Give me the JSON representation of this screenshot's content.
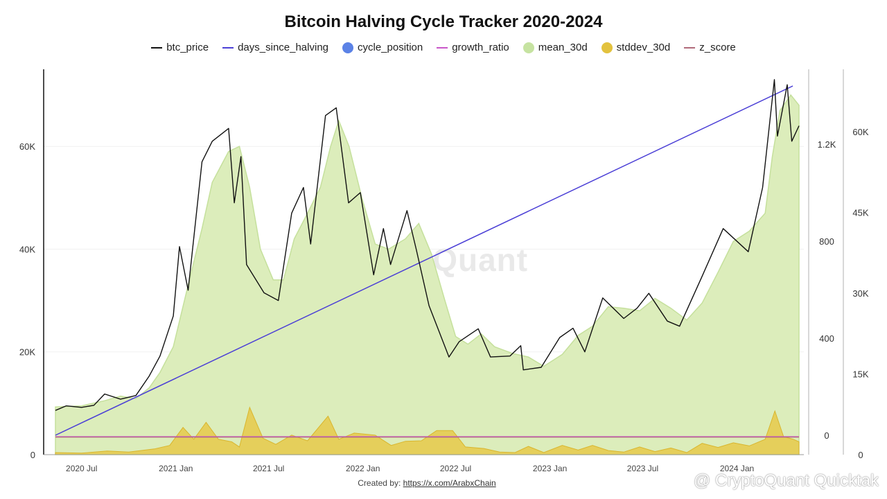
{
  "title": "Bitcoin Halving Cycle Tracker 2020-2024",
  "legend": [
    {
      "label": "btc_price",
      "color": "#111111",
      "kind": "line"
    },
    {
      "label": "days_since_halving",
      "color": "#4b3fd6",
      "kind": "line"
    },
    {
      "label": "cycle_position",
      "color": "#5b82e6",
      "kind": "dot"
    },
    {
      "label": "growth_ratio",
      "color": "#c956c9",
      "kind": "line"
    },
    {
      "label": "mean_30d",
      "color": "#c6e3a1",
      "kind": "dot"
    },
    {
      "label": "stddev_30d",
      "color": "#e3c23e",
      "kind": "dot"
    },
    {
      "label": "z_score",
      "color": "#b06a7a",
      "kind": "line"
    }
  ],
  "watermark": "CryptoQuant",
  "credit": {
    "prefix": "Created by:",
    "link": "https://x.com/ArabxChain"
  },
  "brand": "@ CryptoQuant Quicktak",
  "chart_data": {
    "type": "line",
    "x_ticks": [
      "2020 Jul",
      "2021 Jan",
      "2021 Jul",
      "2022 Jan",
      "2022 Jul",
      "2023 Jan",
      "2023 Jul",
      "2024 Jan"
    ],
    "x_start": "2020-05-11",
    "x_end": "2024-05-01",
    "y_left": {
      "ticks": [
        "0",
        "20K",
        "40K",
        "60K"
      ],
      "range": [
        0,
        75000
      ]
    },
    "y_right_inner": {
      "ticks": [
        "0",
        "400",
        "800",
        "1.2K"
      ],
      "range": [
        -100,
        1500
      ]
    },
    "y_right_outer": {
      "ticks": [
        "0",
        "15K",
        "30K",
        "45K",
        "60K"
      ],
      "range": [
        0,
        72000
      ]
    },
    "series": [
      {
        "name": "btc_price",
        "axis": "left",
        "points": [
          [
            "2020-05-11",
            8600
          ],
          [
            "2020-06-01",
            9500
          ],
          [
            "2020-07-01",
            9200
          ],
          [
            "2020-07-25",
            9600
          ],
          [
            "2020-08-15",
            11800
          ],
          [
            "2020-09-15",
            10800
          ],
          [
            "2020-10-15",
            11500
          ],
          [
            "2020-11-10",
            15300
          ],
          [
            "2020-12-01",
            19200
          ],
          [
            "2020-12-27",
            27000
          ],
          [
            "2021-01-08",
            40500
          ],
          [
            "2021-01-25",
            32000
          ],
          [
            "2021-02-21",
            57000
          ],
          [
            "2021-03-13",
            61000
          ],
          [
            "2021-04-14",
            63500
          ],
          [
            "2021-04-25",
            49000
          ],
          [
            "2021-05-08",
            58000
          ],
          [
            "2021-05-19",
            37000
          ],
          [
            "2021-06-22",
            31500
          ],
          [
            "2021-07-20",
            30000
          ],
          [
            "2021-08-15",
            47000
          ],
          [
            "2021-09-07",
            52000
          ],
          [
            "2021-09-21",
            41000
          ],
          [
            "2021-10-20",
            66000
          ],
          [
            "2021-11-10",
            67500
          ],
          [
            "2021-12-04",
            49000
          ],
          [
            "2021-12-27",
            51000
          ],
          [
            "2022-01-22",
            35000
          ],
          [
            "2022-02-10",
            44000
          ],
          [
            "2022-02-24",
            37000
          ],
          [
            "2022-03-28",
            47500
          ],
          [
            "2022-04-15",
            40000
          ],
          [
            "2022-05-10",
            29000
          ],
          [
            "2022-06-18",
            19000
          ],
          [
            "2022-07-08",
            22000
          ],
          [
            "2022-08-14",
            24500
          ],
          [
            "2022-09-07",
            19000
          ],
          [
            "2022-10-15",
            19200
          ],
          [
            "2022-11-05",
            21200
          ],
          [
            "2022-11-10",
            16500
          ],
          [
            "2022-12-15",
            17000
          ],
          [
            "2023-01-20",
            22800
          ],
          [
            "2023-02-15",
            24600
          ],
          [
            "2023-03-10",
            20000
          ],
          [
            "2023-04-14",
            30500
          ],
          [
            "2023-05-25",
            26500
          ],
          [
            "2023-06-20",
            28500
          ],
          [
            "2023-07-13",
            31400
          ],
          [
            "2023-08-18",
            26000
          ],
          [
            "2023-09-11",
            25000
          ],
          [
            "2023-10-24",
            34500
          ],
          [
            "2023-12-05",
            44000
          ],
          [
            "2024-01-23",
            39500
          ],
          [
            "2024-02-20",
            52000
          ],
          [
            "2024-03-14",
            73000
          ],
          [
            "2024-03-20",
            62000
          ],
          [
            "2024-04-08",
            72000
          ],
          [
            "2024-04-17",
            61000
          ],
          [
            "2024-05-01",
            64000
          ]
        ]
      },
      {
        "name": "mean_30d",
        "axis": "left",
        "points": [
          [
            "2020-05-11",
            9300
          ],
          [
            "2020-07-01",
            9500
          ],
          [
            "2020-08-15",
            10500
          ],
          [
            "2020-09-15",
            11400
          ],
          [
            "2020-10-15",
            10900
          ],
          [
            "2020-11-10",
            13000
          ],
          [
            "2020-12-01",
            16000
          ],
          [
            "2020-12-27",
            21000
          ],
          [
            "2021-01-25",
            33000
          ],
          [
            "2021-02-21",
            44000
          ],
          [
            "2021-03-13",
            53000
          ],
          [
            "2021-04-14",
            59000
          ],
          [
            "2021-05-05",
            60000
          ],
          [
            "2021-05-25",
            52000
          ],
          [
            "2021-06-15",
            40000
          ],
          [
            "2021-07-10",
            34000
          ],
          [
            "2021-07-30",
            34000
          ],
          [
            "2021-08-20",
            42000
          ],
          [
            "2021-09-15",
            47000
          ],
          [
            "2021-10-10",
            52000
          ],
          [
            "2021-10-30",
            60000
          ],
          [
            "2021-11-15",
            65000
          ],
          [
            "2021-12-05",
            60000
          ],
          [
            "2021-12-30",
            50000
          ],
          [
            "2022-01-25",
            41000
          ],
          [
            "2022-02-20",
            40000
          ],
          [
            "2022-03-25",
            42000
          ],
          [
            "2022-04-20",
            45000
          ],
          [
            "2022-05-15",
            39000
          ],
          [
            "2022-06-10",
            30000
          ],
          [
            "2022-07-01",
            23000
          ],
          [
            "2022-07-25",
            21500
          ],
          [
            "2022-08-20",
            23500
          ],
          [
            "2022-09-15",
            21000
          ],
          [
            "2022-10-20",
            19700
          ],
          [
            "2022-11-20",
            19000
          ],
          [
            "2022-12-20",
            17200
          ],
          [
            "2023-01-25",
            19500
          ],
          [
            "2023-02-25",
            23200
          ],
          [
            "2023-03-25",
            25000
          ],
          [
            "2023-04-25",
            28800
          ],
          [
            "2023-05-25",
            28500
          ],
          [
            "2023-06-25",
            28000
          ],
          [
            "2023-07-25",
            30400
          ],
          [
            "2023-08-25",
            28500
          ],
          [
            "2023-09-25",
            26200
          ],
          [
            "2023-10-25",
            29500
          ],
          [
            "2023-11-25",
            35500
          ],
          [
            "2023-12-25",
            41500
          ],
          [
            "2024-01-25",
            43500
          ],
          [
            "2024-02-25",
            47000
          ],
          [
            "2024-03-10",
            58000
          ],
          [
            "2024-03-25",
            67000
          ],
          [
            "2024-04-15",
            70000
          ],
          [
            "2024-05-01",
            68000
          ]
        ]
      },
      {
        "name": "stddev_30d",
        "axis": "left",
        "points": [
          [
            "2020-05-11",
            400
          ],
          [
            "2020-07-01",
            300
          ],
          [
            "2020-08-20",
            700
          ],
          [
            "2020-10-01",
            500
          ],
          [
            "2020-11-20",
            1100
          ],
          [
            "2020-12-20",
            1800
          ],
          [
            "2021-01-15",
            5300
          ],
          [
            "2021-02-05",
            3000
          ],
          [
            "2021-03-01",
            6300
          ],
          [
            "2021-03-25",
            3000
          ],
          [
            "2021-04-20",
            2500
          ],
          [
            "2021-05-05",
            1500
          ],
          [
            "2021-05-25",
            9200
          ],
          [
            "2021-06-20",
            3200
          ],
          [
            "2021-07-15",
            2000
          ],
          [
            "2021-08-15",
            3800
          ],
          [
            "2021-09-15",
            2700
          ],
          [
            "2021-10-25",
            7500
          ],
          [
            "2021-11-15",
            3000
          ],
          [
            "2021-12-15",
            4200
          ],
          [
            "2022-01-25",
            3800
          ],
          [
            "2022-02-25",
            1800
          ],
          [
            "2022-03-25",
            2600
          ],
          [
            "2022-04-25",
            2700
          ],
          [
            "2022-05-25",
            4700
          ],
          [
            "2022-06-25",
            4700
          ],
          [
            "2022-07-20",
            1500
          ],
          [
            "2022-08-25",
            1200
          ],
          [
            "2022-09-25",
            500
          ],
          [
            "2022-10-25",
            400
          ],
          [
            "2022-11-20",
            1600
          ],
          [
            "2022-12-20",
            400
          ],
          [
            "2023-01-25",
            1800
          ],
          [
            "2023-02-25",
            900
          ],
          [
            "2023-03-25",
            1800
          ],
          [
            "2023-04-25",
            800
          ],
          [
            "2023-05-25",
            500
          ],
          [
            "2023-06-25",
            1500
          ],
          [
            "2023-07-25",
            600
          ],
          [
            "2023-08-25",
            1300
          ],
          [
            "2023-09-25",
            400
          ],
          [
            "2023-10-25",
            2200
          ],
          [
            "2023-11-25",
            1400
          ],
          [
            "2023-12-25",
            2300
          ],
          [
            "2024-01-25",
            1700
          ],
          [
            "2024-02-25",
            3000
          ],
          [
            "2024-03-15",
            8500
          ],
          [
            "2024-04-01",
            3500
          ],
          [
            "2024-04-20",
            3000
          ],
          [
            "2024-05-01",
            2500
          ]
        ]
      },
      {
        "name": "days_since_halving",
        "axis": "right_inner",
        "points": [
          [
            "2020-05-11",
            0
          ],
          [
            "2024-04-19",
            1440
          ]
        ]
      },
      {
        "name": "growth_ratio",
        "axis": "left",
        "points": [
          [
            "2020-05-11",
            3500
          ],
          [
            "2024-05-01",
            3500
          ]
        ]
      },
      {
        "name": "z_score",
        "axis": "left",
        "points": [
          [
            "2020-05-11",
            3400
          ],
          [
            "2024-05-01",
            3400
          ]
        ]
      }
    ]
  }
}
